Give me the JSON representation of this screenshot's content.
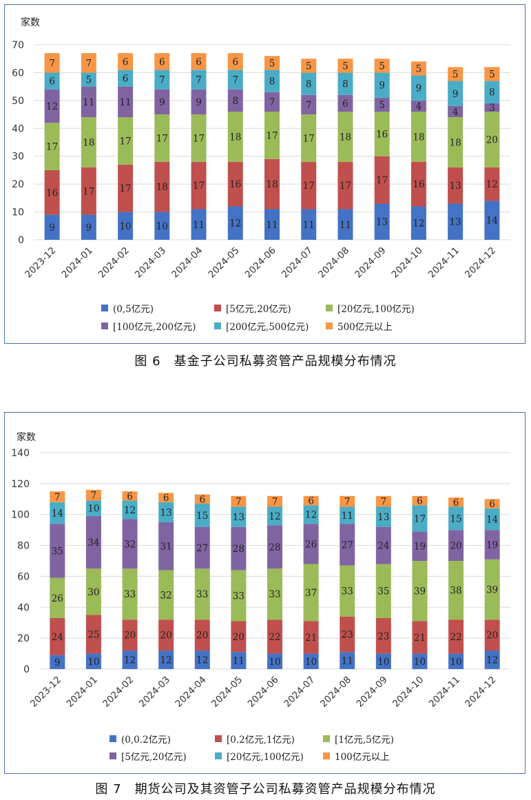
{
  "charts": [
    {
      "caption": "图 6　基金子公司私募资管产品规模分布情况",
      "chart_data": {
        "type": "bar",
        "stacked": true,
        "ylabel": "家数",
        "ylim": [
          0,
          70
        ],
        "yticks": [
          0,
          10,
          20,
          30,
          40,
          50,
          60,
          70
        ],
        "categories": [
          "2023-12",
          "2024-01",
          "2024-02",
          "2024-03",
          "2024-04",
          "2024-05",
          "2024-06",
          "2024-07",
          "2024-08",
          "2024-09",
          "2024-10",
          "2024-11",
          "2024-12"
        ],
        "series": [
          {
            "name": "(0,5亿元)",
            "color": "#4472c4",
            "values": [
              9,
              9,
              10,
              10,
              11,
              12,
              11,
              11,
              11,
              13,
              12,
              13,
              14
            ]
          },
          {
            "name": "[5亿元,20亿元)",
            "color": "#c0504d",
            "values": [
              16,
              17,
              17,
              18,
              17,
              16,
              18,
              17,
              17,
              17,
              16,
              13,
              12
            ]
          },
          {
            "name": "[20亿元,100亿元)",
            "color": "#9bbb59",
            "values": [
              17,
              18,
              17,
              17,
              17,
              18,
              17,
              17,
              18,
              16,
              18,
              18,
              20
            ]
          },
          {
            "name": "[100亿元,200亿元)",
            "color": "#8064a2",
            "values": [
              12,
              11,
              11,
              9,
              9,
              8,
              7,
              7,
              6,
              5,
              4,
              4,
              3
            ]
          },
          {
            "name": "[200亿元,500亿元)",
            "color": "#4bacc6",
            "values": [
              6,
              5,
              6,
              7,
              7,
              7,
              8,
              8,
              8,
              9,
              9,
              9,
              8
            ]
          },
          {
            "name": "500亿元以上",
            "color": "#f79646",
            "values": [
              7,
              7,
              6,
              6,
              6,
              6,
              5,
              5,
              5,
              5,
              5,
              5,
              5
            ]
          }
        ]
      }
    },
    {
      "caption": "图 7　期货公司及其资管子公司私募资管产品规模分布情况",
      "chart_data": {
        "type": "bar",
        "stacked": true,
        "ylabel": "家数",
        "ylim": [
          0,
          140
        ],
        "yticks": [
          0,
          20,
          40,
          60,
          80,
          100,
          120,
          140
        ],
        "categories": [
          "2023-12",
          "2024-01",
          "2024-02",
          "2024-03",
          "2024-04",
          "2024-05",
          "2024-06",
          "2024-07",
          "2024-08",
          "2024-09",
          "2024-10",
          "2024-11",
          "2024-12"
        ],
        "series": [
          {
            "name": "(0,0.2亿元)",
            "color": "#4472c4",
            "values": [
              9,
              10,
              12,
              12,
              12,
              11,
              10,
              10,
              11,
              10,
              10,
              10,
              12
            ]
          },
          {
            "name": "[0.2亿元,1亿元)",
            "color": "#c0504d",
            "values": [
              24,
              25,
              20,
              20,
              20,
              20,
              22,
              21,
              23,
              23,
              21,
              22,
              20
            ]
          },
          {
            "name": "[1亿元,5亿元)",
            "color": "#9bbb59",
            "values": [
              26,
              30,
              33,
              32,
              33,
              33,
              33,
              37,
              33,
              35,
              39,
              38,
              39
            ]
          },
          {
            "name": "[5亿元,20亿元)",
            "color": "#8064a2",
            "values": [
              35,
              34,
              32,
              31,
              27,
              28,
              28,
              26,
              27,
              24,
              19,
              20,
              19
            ]
          },
          {
            "name": "[20亿元,100亿元)",
            "color": "#4bacc6",
            "values": [
              14,
              10,
              12,
              13,
              15,
              13,
              12,
              12,
              11,
              13,
              17,
              15,
              14
            ]
          },
          {
            "name": "100亿元以上",
            "color": "#f79646",
            "values": [
              7,
              7,
              6,
              6,
              6,
              7,
              7,
              6,
              7,
              7,
              6,
              6,
              6
            ]
          }
        ]
      }
    }
  ]
}
